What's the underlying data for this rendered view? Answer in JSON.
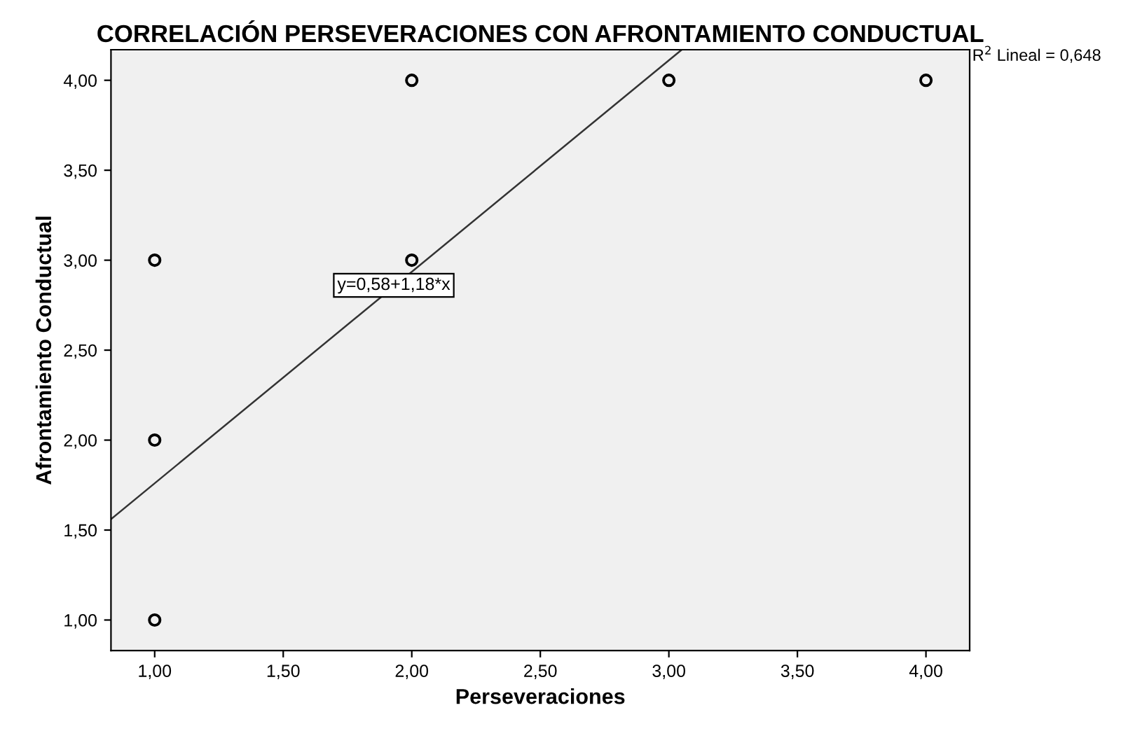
{
  "chart_data": {
    "type": "scatter",
    "title": "CORRELACIÓN PERSEVERACIONES CON AFRONTAMIENTO CONDUCTUAL",
    "xlabel": "Perseveraciones",
    "ylabel": "Afrontamiento Conductual",
    "x": [
      1,
      1,
      1,
      2,
      2,
      3,
      4
    ],
    "series": [
      {
        "color": "#000000",
        "values": [
          1,
          2,
          3,
          3,
          4,
          4,
          4
        ],
        "marker": "circle"
      },
      {
        "type": "line",
        "color": "#333333",
        "x": [
          0.83,
          3.05
        ],
        "values": [
          1.56,
          4.17
        ],
        "marker": "none"
      }
    ],
    "annotations": [
      {
        "text": "y=0,58+1,18*x",
        "x": 1.93,
        "y": 2.86
      },
      "R$^{2}$ Lineal = 0,648"
    ],
    "xlim": [
      0.83,
      4.17
    ],
    "ylim": [
      0.83,
      4.17
    ],
    "xticks": [
      {
        "value": 1,
        "label": "1,00"
      },
      {
        "value": 1.5,
        "label": "1,50"
      },
      {
        "value": 2,
        "label": "2,00"
      },
      {
        "value": 2.5,
        "label": "2,50"
      },
      {
        "value": 3,
        "label": "3,00"
      },
      {
        "value": 3.5,
        "label": "3,50"
      },
      {
        "value": 4,
        "label": "4,00"
      }
    ],
    "yticks": [
      {
        "value": 1,
        "label": "1,00"
      },
      {
        "value": 1.5,
        "label": "1,50"
      },
      {
        "value": 2,
        "label": "2,00"
      },
      {
        "value": 2.5,
        "label": "2,50"
      },
      {
        "value": 3,
        "label": "3,00"
      },
      {
        "value": 3.5,
        "label": "3,50"
      },
      {
        "value": 4,
        "label": "4,00"
      }
    ],
    "grid": false
  }
}
